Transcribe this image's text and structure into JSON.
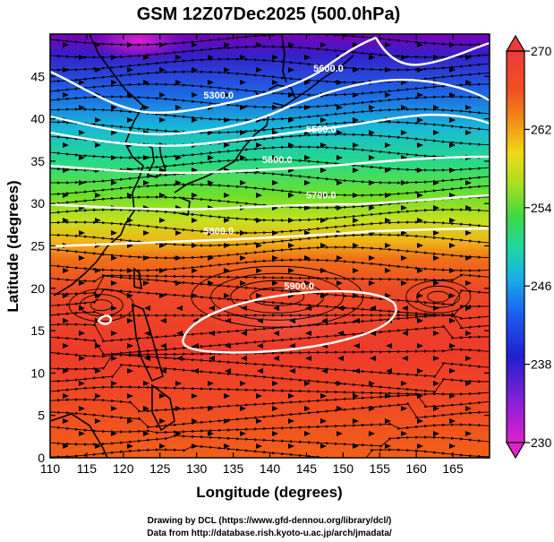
{
  "title": "GSM 12Z07Dec2025 (500.0hPa)",
  "xaxis": {
    "label": "Longitude (degrees)",
    "range": [
      110,
      170
    ],
    "ticks": [
      "110",
      "115",
      "120",
      "125",
      "130",
      "135",
      "140",
      "145",
      "150",
      "155",
      "160",
      "165"
    ]
  },
  "yaxis": {
    "label": "Latitude  (degrees)",
    "range": [
      0,
      50
    ],
    "ticks": [
      "0",
      "5",
      "10",
      "15",
      "20",
      "25",
      "30",
      "35",
      "40",
      "45"
    ]
  },
  "colorbar": {
    "range": [
      230,
      270
    ],
    "ticks": [
      "230",
      "238",
      "246",
      "254",
      "262",
      "270"
    ]
  },
  "contour_labels": [
    {
      "text": "5300.0",
      "lon": 133,
      "lat": 42.8
    },
    {
      "text": "5600.0",
      "lon": 148,
      "lat": 46.0
    },
    {
      "text": "5500.0",
      "lon": 147,
      "lat": 38.8
    },
    {
      "text": "5600.0",
      "lon": 141,
      "lat": 35.2
    },
    {
      "text": "5700.0",
      "lon": 147,
      "lat": 31.0
    },
    {
      "text": "5800.0",
      "lon": 133,
      "lat": 26.8
    },
    {
      "text": "5900.0",
      "lon": 144,
      "lat": 20.3
    }
  ],
  "footer": {
    "line1": "Drawing by DCL (https://www.gfd-dennou.org/library/dcl/)",
    "line2": "Data from http://database.rish.kyoto-u.ac.jp/arch/jmadata/"
  }
}
